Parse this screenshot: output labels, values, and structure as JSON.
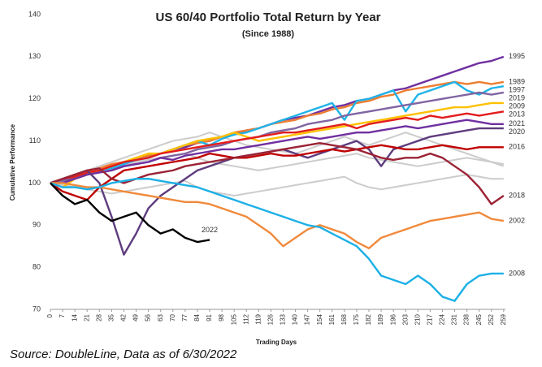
{
  "chart_data": {
    "type": "line",
    "title": "US 60/40 Portfolio Total Return by Year",
    "subtitle": "(Since 1988)",
    "x_label": "Trading Days",
    "y_label": "Cumulative Performance",
    "xlim": [
      0,
      260
    ],
    "ylim": [
      70,
      140
    ],
    "xticks": [
      0,
      7,
      14,
      21,
      28,
      35,
      42,
      49,
      56,
      63,
      70,
      77,
      84,
      91,
      98,
      105,
      112,
      119,
      126,
      133,
      140,
      147,
      154,
      161,
      168,
      175,
      182,
      189,
      196,
      203,
      210,
      217,
      224,
      231,
      238,
      245,
      252,
      259
    ],
    "yticks": [
      70,
      80,
      90,
      100,
      110,
      120,
      130,
      140
    ],
    "x": [
      0,
      7,
      14,
      21,
      28,
      35,
      42,
      49,
      56,
      63,
      70,
      77,
      84,
      91,
      98,
      105,
      112,
      119,
      126,
      133,
      140,
      147,
      154,
      161,
      168,
      175,
      182,
      189,
      196,
      203,
      210,
      217,
      224,
      231,
      238,
      245,
      252,
      259
    ],
    "series": [
      {
        "color": "#cccccc",
        "values": [
          100,
          101,
          101.5,
          102,
          103,
          103.5,
          104,
          105,
          105.5,
          106,
          106.5,
          107,
          106,
          105,
          104.5,
          104,
          103.5,
          103,
          103.5,
          104,
          104.5,
          105,
          105.5,
          106,
          106.5,
          107,
          106,
          105.5,
          105,
          104.5,
          104,
          104.5,
          105,
          105.5,
          106,
          105.5,
          105,
          104.5
        ]
      },
      {
        "color": "#cccccc",
        "values": [
          100,
          99.5,
          99,
          98.5,
          98,
          97.5,
          98,
          98.5,
          99,
          99.5,
          100,
          100.5,
          99,
          98,
          97.5,
          97,
          97.5,
          98,
          98.5,
          99,
          99.5,
          100,
          100.5,
          101,
          101.5,
          100,
          99,
          98.5,
          99,
          99.5,
          100,
          100.5,
          101,
          101.5,
          102,
          101.5,
          101,
          101
        ]
      },
      {
        "color": "#cccccc",
        "values": [
          100,
          101,
          102,
          103,
          104,
          105,
          106,
          107,
          108,
          109,
          110,
          110.5,
          111,
          112,
          111,
          110,
          109,
          108.5,
          108,
          107.5,
          107,
          108,
          109,
          110,
          111,
          110,
          109,
          110,
          111,
          112,
          111,
          110,
          109,
          108,
          107,
          106,
          105,
          104
        ]
      },
      {
        "name": "1995",
        "color": "#7030a0",
        "values": [
          100,
          100.5,
          101.5,
          102,
          103,
          104,
          104.5,
          105.5,
          106,
          107,
          108,
          108.5,
          109.5,
          110,
          111,
          111.5,
          112.5,
          113,
          114,
          115,
          115.5,
          116,
          117,
          118,
          118.5,
          119.5,
          120,
          121,
          122,
          122.5,
          123.5,
          124.5,
          125.5,
          126.5,
          127.5,
          128.5,
          129,
          130
        ]
      },
      {
        "name": "1989",
        "color": "#ed7d31",
        "values": [
          100,
          101,
          102,
          103,
          103.5,
          104.5,
          105,
          106,
          106.5,
          107,
          108,
          109,
          109.5,
          110,
          111,
          112,
          112.5,
          113,
          114,
          114.5,
          115,
          116,
          116.5,
          117.5,
          118,
          119,
          119.5,
          120.5,
          121,
          122,
          122.5,
          123,
          123.5,
          124,
          123.5,
          124,
          123.5,
          124
        ]
      },
      {
        "name": "1997",
        "color": "#1fb4e8",
        "values": [
          100,
          101,
          101.5,
          102,
          103,
          103.5,
          104.5,
          105.5,
          106,
          107,
          108,
          109,
          110,
          109,
          110.5,
          111.5,
          112,
          113,
          114,
          115,
          116,
          117,
          118,
          119,
          115,
          119.5,
          120,
          121,
          122,
          117,
          121,
          122,
          123,
          124,
          122,
          121,
          122.5,
          123
        ]
      },
      {
        "name": "2019",
        "color": "#8064a2",
        "values": [
          100,
          100.5,
          101,
          102,
          102.5,
          103,
          104,
          104.5,
          105,
          106,
          106.5,
          107,
          108,
          108.5,
          109,
          110,
          110.5,
          111,
          112,
          112.5,
          113,
          114,
          114.5,
          115,
          116,
          116.5,
          117,
          117.5,
          118,
          118.5,
          119,
          119.5,
          120,
          120.5,
          121,
          121.5,
          121,
          121.5
        ]
      },
      {
        "name": "2009",
        "color": "#ffc000",
        "values": [
          100,
          99,
          101,
          102,
          103,
          104,
          105,
          106,
          107,
          107,
          108,
          109,
          110,
          110.5,
          111,
          112,
          111,
          110,
          110.5,
          111,
          111.5,
          112,
          112.5,
          113,
          113.5,
          114,
          114.5,
          115,
          115.5,
          116,
          116.5,
          117,
          117.5,
          118,
          118,
          118.5,
          119,
          119
        ]
      },
      {
        "name": "2013",
        "color": "#e31c1c",
        "values": [
          100,
          101,
          101.5,
          102.5,
          103,
          104,
          105,
          105.5,
          106,
          107,
          107.5,
          108,
          108.5,
          109,
          109.5,
          110,
          110.5,
          111,
          111.5,
          112,
          112,
          112.5,
          113,
          113.5,
          114,
          113,
          114,
          114.5,
          115,
          115.5,
          115,
          116,
          115.5,
          116,
          116.5,
          116,
          116.5,
          117
        ]
      },
      {
        "name": "2021",
        "color": "#7030a0",
        "values": [
          100,
          100,
          101,
          102,
          102.5,
          103,
          104,
          104.5,
          105,
          106,
          105.5,
          106.5,
          107,
          107.5,
          108,
          108,
          108.5,
          109,
          109.5,
          110,
          110.5,
          111,
          110.5,
          111,
          111.5,
          112,
          112,
          112.5,
          113,
          113.5,
          113,
          113.5,
          114,
          114.5,
          115,
          114.5,
          114,
          114
        ]
      },
      {
        "name": "2020",
        "color": "#5e3c7e",
        "values": [
          100,
          101,
          102,
          103,
          100,
          92,
          83,
          88,
          94,
          97,
          99,
          101,
          103,
          104,
          105,
          106,
          106.5,
          107,
          107.5,
          108,
          107,
          106,
          107,
          108,
          109,
          110,
          108,
          104,
          108,
          109,
          110,
          111,
          111.5,
          112,
          112.5,
          113,
          113,
          113
        ]
      },
      {
        "name": "2016",
        "color": "#c00000",
        "values": [
          100,
          98,
          97,
          96,
          99,
          101,
          103,
          103.5,
          104,
          104.5,
          105,
          105.5,
          106,
          107,
          106.5,
          106,
          106,
          106.5,
          107,
          106.5,
          106.5,
          107,
          107.5,
          108,
          107.5,
          108,
          108.5,
          109,
          108.5,
          108,
          108,
          108.5,
          109,
          108.5,
          108,
          108.5,
          108.5,
          108.5
        ]
      },
      {
        "name": "2018",
        "color": "#9b2335",
        "values": [
          100,
          101,
          102,
          103,
          103.5,
          101,
          100,
          101,
          102,
          102.5,
          103,
          104,
          104.5,
          105,
          105.5,
          106,
          106.5,
          107,
          107.5,
          108,
          108.5,
          109,
          109.5,
          109,
          108.5,
          108,
          107,
          106,
          105.5,
          106,
          106,
          107,
          106,
          104,
          102,
          99,
          95,
          97
        ]
      },
      {
        "name": "2002",
        "color": "#f08a3c",
        "values": [
          100,
          100,
          99.5,
          99,
          99,
          98.5,
          98,
          97.5,
          97,
          96.5,
          96,
          95.5,
          95.5,
          95,
          94,
          93,
          92,
          90,
          88,
          85,
          87,
          89,
          90,
          89,
          88,
          86,
          84.5,
          87,
          88,
          89,
          90,
          91,
          91.5,
          92,
          92.5,
          93,
          91.5,
          91
        ]
      },
      {
        "name": "2008",
        "color": "#1cb0e6",
        "values": [
          100,
          99,
          99,
          98.5,
          99,
          100,
          100.5,
          101,
          101,
          100.5,
          100,
          99.5,
          99,
          98,
          97,
          96,
          95,
          94,
          93,
          92,
          91,
          90,
          89.5,
          88,
          86.5,
          85,
          82,
          78,
          77,
          76,
          78,
          76,
          73,
          72,
          76,
          78,
          78.5,
          78.5
        ]
      },
      {
        "name": "2022",
        "color": "#000000",
        "values": [
          100,
          97,
          95,
          96,
          93,
          91,
          92,
          93,
          90,
          88,
          89,
          87,
          86,
          86.5,
          null,
          null,
          null,
          null,
          null,
          null,
          null,
          null,
          null,
          null,
          null,
          null,
          null,
          null,
          null,
          null,
          null,
          null,
          null,
          null,
          null,
          null,
          null,
          null
        ]
      }
    ]
  },
  "source": "Source: DoubleLine, Data as of 6/30/2022"
}
